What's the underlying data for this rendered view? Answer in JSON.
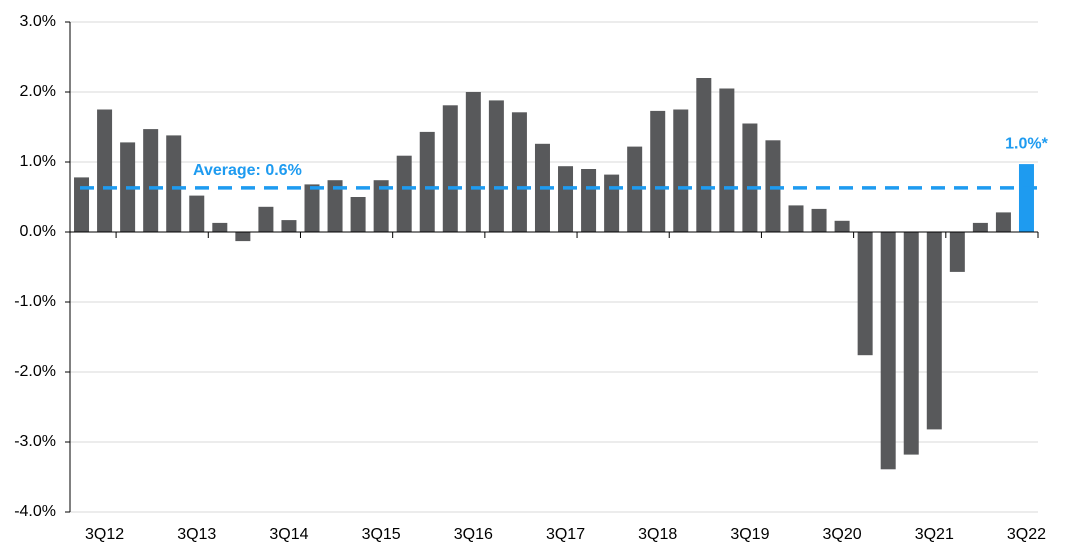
{
  "chart_data": {
    "type": "bar",
    "categories": [
      null,
      "3Q12",
      null,
      null,
      null,
      "3Q13",
      null,
      null,
      null,
      "3Q14",
      null,
      null,
      null,
      "3Q15",
      null,
      null,
      null,
      "3Q16",
      null,
      null,
      null,
      "3Q17",
      null,
      null,
      null,
      "3Q18",
      null,
      null,
      null,
      "3Q19",
      null,
      null,
      null,
      "3Q20",
      null,
      null,
      null,
      "3Q21",
      null,
      null,
      null,
      "3Q22"
    ],
    "values": [
      0.78,
      1.75,
      1.28,
      1.47,
      1.38,
      0.52,
      0.13,
      -0.13,
      0.36,
      0.17,
      0.68,
      0.74,
      0.5,
      0.74,
      1.09,
      1.43,
      1.81,
      2.0,
      1.88,
      1.71,
      1.26,
      0.94,
      0.9,
      0.82,
      1.22,
      1.73,
      1.75,
      2.2,
      2.05,
      1.55,
      1.31,
      0.38,
      0.33,
      0.16,
      -1.76,
      -3.39,
      -3.18,
      -2.82,
      -0.57,
      0.13,
      0.28,
      0.97
    ],
    "value_labels": [
      null,
      null,
      null,
      null,
      null,
      null,
      null,
      null,
      null,
      null,
      null,
      null,
      null,
      null,
      null,
      null,
      null,
      null,
      null,
      null,
      null,
      null,
      null,
      null,
      null,
      null,
      null,
      null,
      null,
      null,
      null,
      null,
      null,
      null,
      null,
      null,
      null,
      null,
      null,
      null,
      null,
      "1.0%*"
    ],
    "color": "#58595b",
    "highlight_color": "#1e9bf0",
    "average": {
      "value": 0.63,
      "label": "Average: 0.6%"
    },
    "ylim": [
      -4,
      3
    ],
    "yticks": [
      {
        "value": -4,
        "label": "-4.0%"
      },
      {
        "value": -3,
        "label": "-3.0%"
      },
      {
        "value": -2,
        "label": "-2.0%"
      },
      {
        "value": -1,
        "label": "-1.0%"
      },
      {
        "value": 0,
        "label": "0.0%"
      },
      {
        "value": 1,
        "label": "1.0%"
      },
      {
        "value": 2,
        "label": "2.0%"
      },
      {
        "value": 3,
        "label": "3.0%"
      }
    ],
    "grid": true
  }
}
